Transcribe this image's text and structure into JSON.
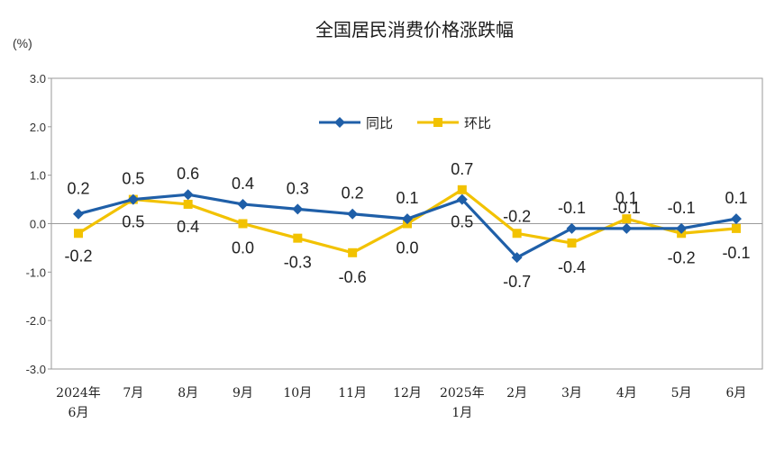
{
  "chart_data": {
    "type": "line",
    "title": "全国居民消费价格涨跌幅",
    "ylabel": "(%)",
    "xlabel": "",
    "ylim": [
      -3.0,
      3.0
    ],
    "y_ticks": [
      "3.0",
      "2.0",
      "1.0",
      "0.0",
      "-1.0",
      "-2.0",
      "-3.0"
    ],
    "y_tick_values": [
      3,
      2,
      1,
      0,
      -1,
      -2,
      -3
    ],
    "categories": [
      [
        "2024年",
        "6月"
      ],
      [
        "7月"
      ],
      [
        "8月"
      ],
      [
        "9月"
      ],
      [
        "10月"
      ],
      [
        "11月"
      ],
      [
        "12月"
      ],
      [
        "2025年",
        "1月"
      ],
      [
        "2月"
      ],
      [
        "3月"
      ],
      [
        "4月"
      ],
      [
        "5月"
      ],
      [
        "6月"
      ]
    ],
    "legend_position": "top-center",
    "grid": false,
    "series": [
      {
        "name": "同比",
        "color": "#1f5fa8",
        "marker": "diamond",
        "values": [
          0.2,
          0.5,
          0.6,
          0.4,
          0.3,
          0.2,
          0.1,
          0.5,
          -0.7,
          -0.1,
          -0.1,
          -0.1,
          0.1
        ],
        "labels": [
          "0.2",
          "0.5",
          "0.6",
          "0.4",
          "0.3",
          "0.2",
          "0.1",
          "0.5",
          "-0.7",
          "-0.1",
          "-0.1",
          "-0.1",
          "0.1"
        ]
      },
      {
        "name": "环比",
        "color": "#f2c200",
        "marker": "square",
        "values": [
          -0.2,
          0.5,
          0.4,
          0.0,
          -0.3,
          -0.6,
          0.0,
          0.7,
          -0.2,
          -0.4,
          0.1,
          -0.2,
          -0.1
        ],
        "labels": [
          "-0.2",
          "0.5",
          "0.4",
          "0.0",
          "-0.3",
          "-0.6",
          "0.0",
          "0.7",
          "-0.2",
          "-0.4",
          "0.1",
          "-0.2",
          "-0.1"
        ]
      }
    ]
  }
}
